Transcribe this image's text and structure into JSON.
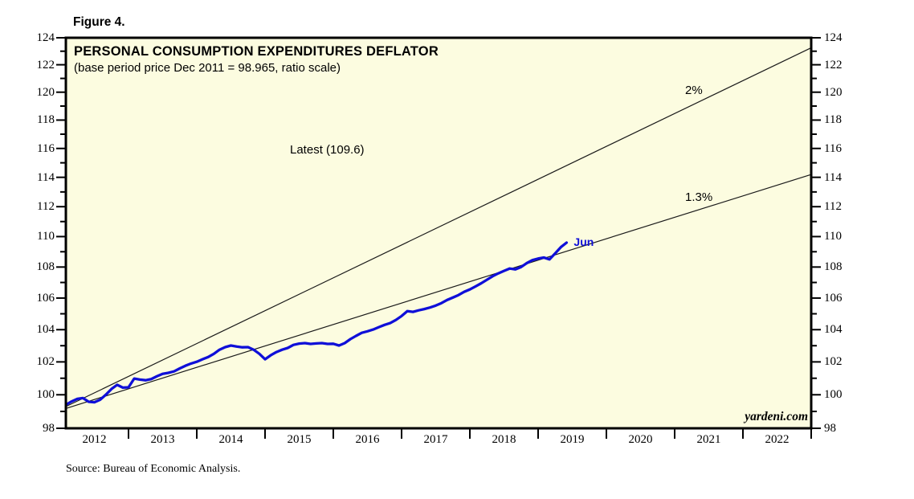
{
  "figure_label": "Figure 4.",
  "source_note": "Source: Bureau of Economic Analysis.",
  "colors": {
    "plot_background": "#FCFCE0",
    "series_line": "#0F0FD8",
    "trend_line": "#1a1a1a",
    "frame": "#000000"
  },
  "chart_data": {
    "type": "line",
    "title": "PERSONAL CONSUMPTION EXPENDITURES DEFLATOR",
    "subtitle": "(base period price Dec 2011 = 98.965, ratio scale)",
    "watermark": "yardeni.com",
    "source": "Source: Bureau of Economic Analysis.",
    "annotations": {
      "latest": "Latest (109.6)"
    },
    "y_axis": {
      "scale": "ratio (log)",
      "min": 98,
      "max": 124,
      "major_tick_step": 2,
      "minor_tick_step": 1,
      "tick_labels": [
        "98",
        "100",
        "102",
        "104",
        "106",
        "108",
        "110",
        "112",
        "114",
        "116",
        "118",
        "120",
        "122",
        "124"
      ],
      "sides": "both"
    },
    "x_axis": {
      "start_month": "2011-12",
      "end_month": "2023-01",
      "year_labels": [
        "2012",
        "2013",
        "2014",
        "2015",
        "2016",
        "2017",
        "2018",
        "2019",
        "2020",
        "2021",
        "2022"
      ]
    },
    "series": [
      {
        "name": "Personal Consumption Expenditures Deflator",
        "frequency": "monthly",
        "start_month": "2011-12",
        "last_point": {
          "month": "2019-06",
          "value": 109.6,
          "label": "Jun"
        },
        "values": [
          98.965,
          99.15,
          99.4,
          99.6,
          99.75,
          99.8,
          99.58,
          99.55,
          99.7,
          100.0,
          100.35,
          100.6,
          100.43,
          100.45,
          100.98,
          100.92,
          100.88,
          100.95,
          101.12,
          101.27,
          101.33,
          101.42,
          101.6,
          101.76,
          101.9,
          102.01,
          102.16,
          102.3,
          102.5,
          102.75,
          102.91,
          103.01,
          102.95,
          102.9,
          102.91,
          102.75,
          102.5,
          102.16,
          102.41,
          102.61,
          102.75,
          102.86,
          103.05,
          103.13,
          103.16,
          103.11,
          103.14,
          103.16,
          103.11,
          103.12,
          103.01,
          103.16,
          103.41,
          103.61,
          103.8,
          103.9,
          104.01,
          104.16,
          104.3,
          104.41,
          104.61,
          104.86,
          105.17,
          105.12,
          105.22,
          105.3,
          105.4,
          105.52,
          105.68,
          105.88,
          106.03,
          106.19,
          106.4,
          106.55,
          106.75,
          106.95,
          107.18,
          107.4,
          107.59,
          107.75,
          107.9,
          107.85,
          108.0,
          108.25,
          108.45,
          108.55,
          108.62,
          108.5,
          108.9,
          109.3,
          109.6
        ]
      }
    ],
    "trend_lines": [
      {
        "label": "2%",
        "annual_growth_pct": 2.0,
        "start_month": "2011-12",
        "start_value": 98.965
      },
      {
        "label": "1.3%",
        "annual_growth_pct": 1.3,
        "start_month": "2011-12",
        "start_value": 98.965
      }
    ]
  }
}
